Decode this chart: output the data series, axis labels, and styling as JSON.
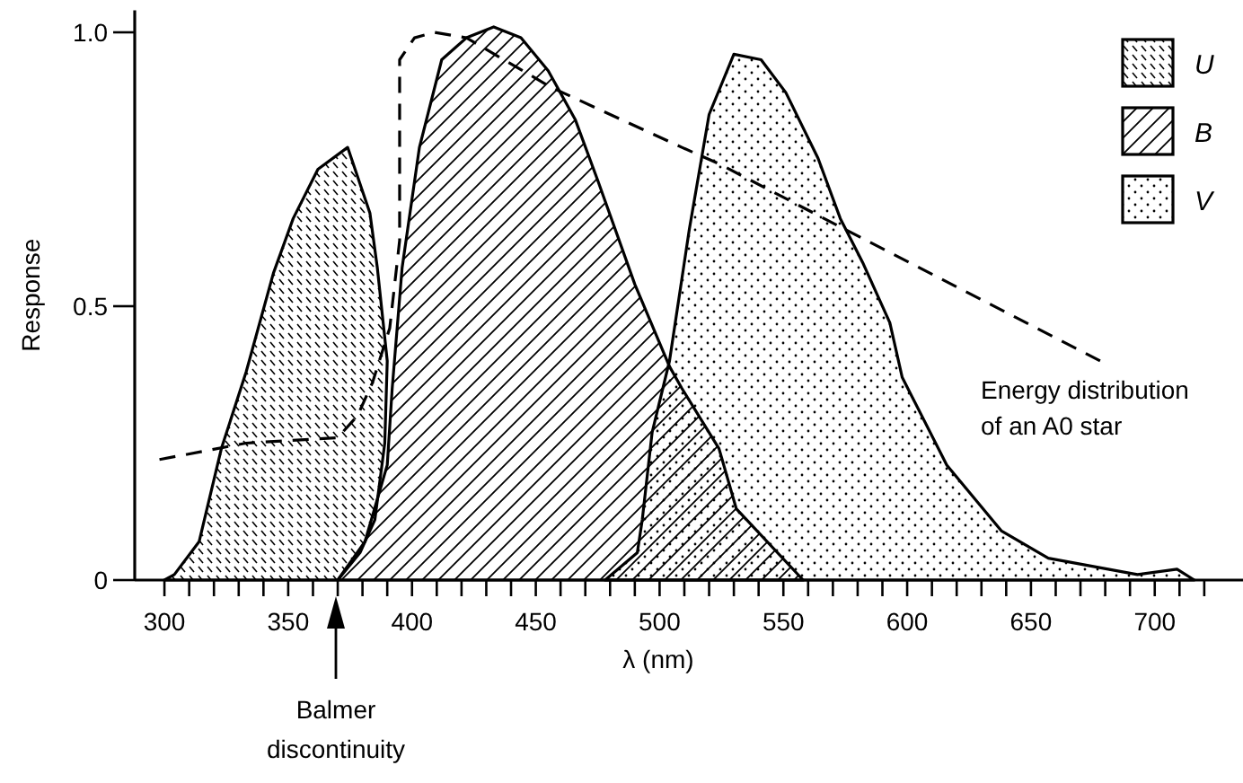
{
  "chart_data": {
    "type": "area",
    "xlabel": "λ (nm)",
    "ylabel": "Response",
    "xlim": [
      288,
      740
    ],
    "ylim": [
      0,
      1.04
    ],
    "xticks": [
      300,
      {
        "value": 310,
        "label": null
      },
      {
        "value": 320,
        "label": null
      },
      {
        "value": 330,
        "label": null
      },
      {
        "value": 340,
        "label": null
      },
      350,
      {
        "value": 360,
        "label": null
      },
      {
        "value": 370,
        "label": null
      },
      {
        "value": 380,
        "label": null
      },
      {
        "value": 390,
        "label": null
      },
      400,
      {
        "value": 410,
        "label": null
      },
      {
        "value": 420,
        "label": null
      },
      {
        "value": 430,
        "label": null
      },
      {
        "value": 440,
        "label": null
      },
      450,
      {
        "value": 460,
        "label": null
      },
      {
        "value": 470,
        "label": null
      },
      {
        "value": 480,
        "label": null
      },
      {
        "value": 490,
        "label": null
      },
      500,
      {
        "value": 510,
        "label": null
      },
      {
        "value": 520,
        "label": null
      },
      {
        "value": 530,
        "label": null
      },
      {
        "value": 540,
        "label": null
      },
      550,
      {
        "value": 560,
        "label": null
      },
      {
        "value": 570,
        "label": null
      },
      {
        "value": 580,
        "label": null
      },
      {
        "value": 590,
        "label": null
      },
      600,
      {
        "value": 610,
        "label": null
      },
      {
        "value": 620,
        "label": null
      },
      {
        "value": 630,
        "label": null
      },
      {
        "value": 640,
        "label": null
      },
      650,
      {
        "value": 660,
        "label": null
      },
      {
        "value": 670,
        "label": null
      },
      {
        "value": 680,
        "label": null
      },
      {
        "value": 690,
        "label": null
      },
      700,
      {
        "value": 710,
        "label": null
      },
      {
        "value": 720,
        "label": null
      }
    ],
    "yticks": [
      0,
      {
        "value": 0.5,
        "label": "0.5"
      },
      {
        "value": 1,
        "label": "1.0"
      }
    ],
    "legend": "top right",
    "series": [
      {
        "name": "U",
        "color": "#000000",
        "x": [
          300,
          304,
          314,
          323,
          333,
          344,
          352,
          362,
          374,
          383,
          386,
          390,
          389,
          385,
          379,
          370
        ],
        "values": [
          0,
          0.01,
          0.07,
          0.24,
          0.38,
          0.56,
          0.66,
          0.75,
          0.79,
          0.67,
          0.57,
          0.4,
          0.25,
          0.11,
          0.05,
          0
        ]
      },
      {
        "name": "B",
        "color": "#000000",
        "x": [
          370,
          381,
          390,
          392,
          396,
          403,
          412,
          422,
          433,
          444,
          455,
          466,
          475,
          490,
          504,
          509,
          524,
          531,
          558
        ],
        "values": [
          0,
          0.07,
          0.21,
          0.35,
          0.57,
          0.79,
          0.95,
          0.99,
          1.01,
          0.99,
          0.93,
          0.84,
          0.73,
          0.54,
          0.39,
          0.35,
          0.24,
          0.13,
          0
        ]
      },
      {
        "name": "V",
        "color": "#000000",
        "x": [
          478,
          491,
          493,
          497,
          504,
          512,
          520,
          530,
          541,
          551,
          564,
          573,
          582,
          593,
          598,
          616,
          638,
          657,
          693,
          709,
          716
        ],
        "values": [
          0,
          0.05,
          0.11,
          0.27,
          0.4,
          0.64,
          0.85,
          0.96,
          0.95,
          0.89,
          0.77,
          0.66,
          0.58,
          0.47,
          0.37,
          0.21,
          0.09,
          0.04,
          0.01,
          0.02,
          0
        ]
      },
      {
        "type": "line",
        "line_style": "dashed",
        "color": "#000000",
        "x": [
          298,
          333,
          370,
          378,
          384,
          391,
          395,
          395,
          401,
          409,
          422,
          456,
          509,
          524,
          575,
          678
        ],
        "values": [
          0.22,
          0.25,
          0.26,
          0.3,
          0.36,
          0.46,
          0.62,
          0.95,
          0.99,
          1,
          0.99,
          0.9,
          0.79,
          0.76,
          0.64,
          0.4
        ]
      }
    ],
    "annotations": [
      "Energy distribution of an A0 star",
      "Balmer discontinuity"
    ]
  }
}
